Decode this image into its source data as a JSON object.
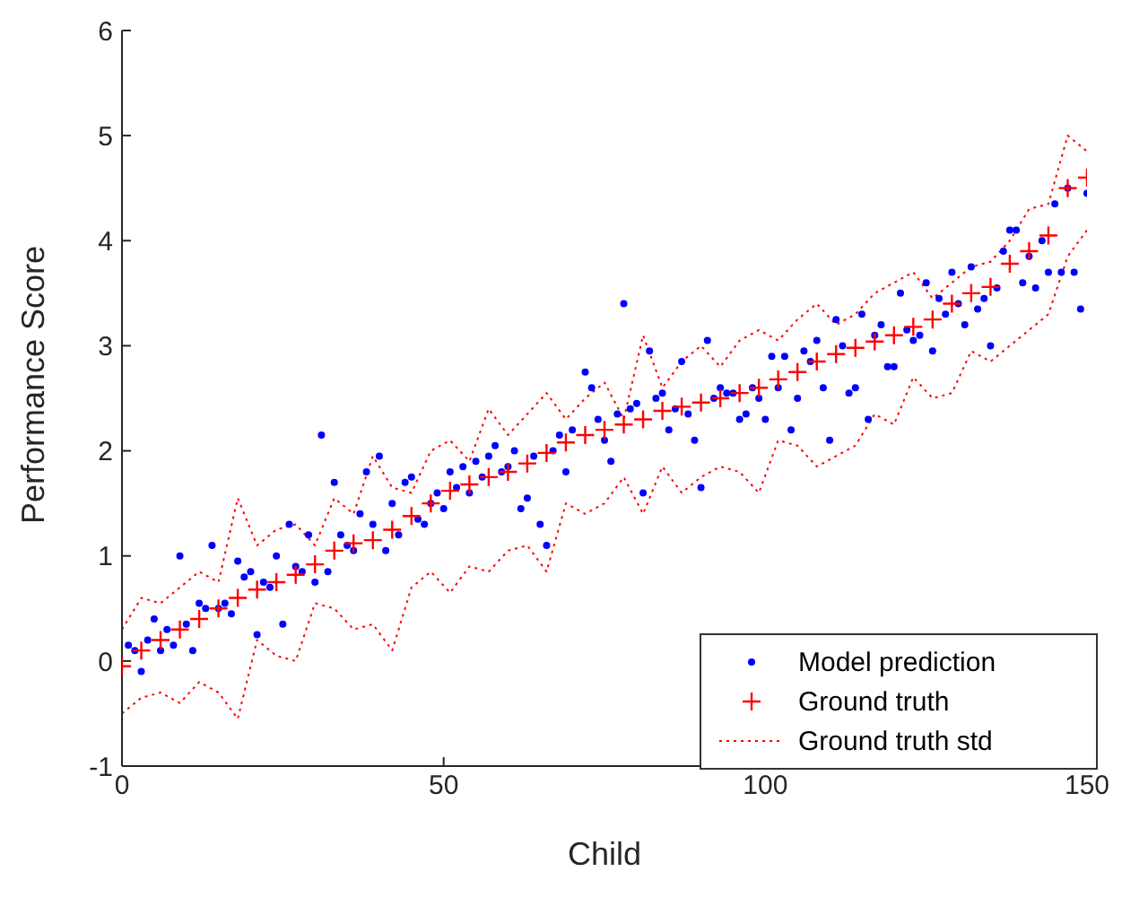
{
  "chart_data": {
    "type": "scatter",
    "xlabel": "Child",
    "ylabel": "Performance Score",
    "xlim": [
      0,
      150
    ],
    "xticks": [
      0,
      50,
      100,
      150
    ],
    "ylim": [
      -1,
      6
    ],
    "yticks": [
      -1,
      0,
      1,
      2,
      3,
      4,
      5,
      6
    ],
    "grid": false,
    "legend": "bottom right",
    "series": [
      {
        "name": "Model prediction",
        "type": "scatter",
        "marker": "circle",
        "color": "#0000ff",
        "x": [
          1,
          2,
          3,
          4,
          5,
          6,
          7,
          8,
          9,
          10,
          11,
          12,
          13,
          14,
          15,
          16,
          17,
          18,
          19,
          20,
          21,
          22,
          23,
          24,
          25,
          26,
          27,
          28,
          29,
          30,
          31,
          32,
          33,
          34,
          35,
          36,
          37,
          38,
          39,
          40,
          41,
          42,
          43,
          44,
          45,
          46,
          47,
          48,
          49,
          50,
          51,
          52,
          53,
          54,
          55,
          56,
          57,
          58,
          59,
          60,
          61,
          62,
          63,
          64,
          65,
          66,
          67,
          68,
          69,
          70,
          72,
          73,
          74,
          75,
          76,
          77,
          78,
          79,
          80,
          81,
          82,
          83,
          84,
          85,
          86,
          87,
          88,
          89,
          90,
          91,
          92,
          93,
          94,
          95,
          96,
          97,
          98,
          99,
          100,
          101,
          102,
          103,
          104,
          105,
          106,
          107,
          108,
          109,
          110,
          111,
          112,
          113,
          114,
          115,
          116,
          117,
          118,
          119,
          120,
          121,
          122,
          123,
          124,
          125,
          126,
          127,
          128,
          129,
          130,
          131,
          132,
          133,
          134,
          135,
          136,
          137,
          138,
          139,
          140,
          141,
          142,
          143,
          144,
          145,
          146,
          147,
          148,
          149,
          150
        ],
        "values": [
          0.15,
          0.1,
          -0.1,
          0.2,
          0.4,
          0.1,
          0.3,
          0.15,
          1.0,
          0.35,
          0.1,
          0.55,
          0.5,
          1.1,
          0.5,
          0.55,
          0.45,
          0.95,
          0.8,
          0.85,
          0.25,
          0.75,
          0.7,
          1.0,
          0.35,
          1.3,
          0.9,
          0.85,
          1.2,
          0.75,
          2.15,
          0.85,
          1.7,
          1.2,
          1.1,
          1.05,
          1.4,
          1.8,
          1.3,
          1.95,
          1.05,
          1.5,
          1.2,
          1.7,
          1.75,
          1.35,
          1.3,
          1.5,
          1.6,
          1.45,
          1.8,
          1.65,
          1.85,
          1.6,
          1.9,
          1.75,
          1.95,
          2.05,
          1.8,
          1.85,
          2.0,
          1.45,
          1.55,
          1.95,
          1.3,
          1.1,
          2.0,
          2.15,
          1.8,
          2.2,
          2.75,
          2.6,
          2.3,
          2.1,
          1.9,
          2.35,
          3.4,
          2.4,
          2.45,
          1.6,
          2.95,
          2.5,
          2.55,
          2.2,
          2.4,
          2.85,
          2.35,
          2.1,
          1.65,
          3.05,
          2.5,
          2.6,
          2.55,
          2.55,
          2.3,
          2.35,
          2.6,
          2.5,
          2.3,
          2.9,
          2.6,
          2.9,
          2.2,
          2.5,
          2.95,
          2.85,
          3.05,
          2.6,
          2.1,
          3.25,
          3.0,
          2.55,
          2.6,
          3.3,
          2.3,
          3.1,
          3.2,
          2.8,
          2.8,
          3.5,
          3.15,
          3.05,
          3.1,
          3.6,
          2.95,
          3.45,
          3.3,
          3.7,
          3.4,
          3.2,
          3.75,
          3.35,
          3.45,
          3.0,
          3.55,
          3.9,
          4.1,
          4.1,
          3.6,
          3.85,
          3.55,
          4.0,
          3.7,
          4.35,
          3.7,
          4.5,
          3.7,
          3.35,
          4.45
        ]
      },
      {
        "name": "Ground truth",
        "type": "scatter",
        "marker": "cross",
        "color": "#ff0000",
        "x": [
          0,
          3,
          6,
          9,
          12,
          15,
          18,
          21,
          24,
          27,
          30,
          33,
          36,
          39,
          42,
          45,
          48,
          51,
          54,
          57,
          60,
          63,
          66,
          69,
          72,
          75,
          78,
          81,
          84,
          87,
          90,
          93,
          96,
          99,
          102,
          105,
          108,
          111,
          114,
          117,
          120,
          123,
          126,
          129,
          132,
          135,
          138,
          141,
          144,
          147,
          150
        ],
        "values": [
          -0.05,
          0.1,
          0.2,
          0.3,
          0.4,
          0.5,
          0.6,
          0.68,
          0.75,
          0.82,
          0.92,
          1.05,
          1.12,
          1.15,
          1.25,
          1.38,
          1.5,
          1.62,
          1.68,
          1.75,
          1.8,
          1.88,
          1.98,
          2.08,
          2.15,
          2.2,
          2.25,
          2.3,
          2.38,
          2.42,
          2.46,
          2.5,
          2.55,
          2.6,
          2.68,
          2.75,
          2.85,
          2.92,
          2.98,
          3.04,
          3.1,
          3.18,
          3.25,
          3.4,
          3.5,
          3.56,
          3.78,
          3.9,
          4.05,
          4.5,
          4.6
        ]
      },
      {
        "name": "Ground truth std",
        "type": "line",
        "line_style": "dotted",
        "marker": "none",
        "color": "#ff0000",
        "x": [
          0,
          3,
          6,
          9,
          12,
          15,
          18,
          21,
          24,
          27,
          30,
          33,
          36,
          39,
          42,
          45,
          48,
          51,
          54,
          57,
          60,
          63,
          66,
          69,
          72,
          75,
          78,
          81,
          84,
          87,
          90,
          93,
          96,
          99,
          102,
          105,
          108,
          111,
          114,
          117,
          120,
          123,
          126,
          129,
          132,
          135,
          138,
          141,
          144,
          147,
          150
        ],
        "values": [
          0.3,
          0.6,
          0.55,
          0.7,
          0.85,
          0.75,
          1.55,
          1.1,
          1.25,
          1.3,
          1.1,
          1.55,
          1.4,
          1.95,
          1.65,
          1.6,
          2.0,
          2.1,
          1.9,
          2.4,
          2.15,
          2.35,
          2.55,
          2.3,
          2.5,
          2.65,
          2.3,
          3.1,
          2.6,
          2.85,
          3.0,
          2.8,
          3.05,
          3.15,
          3.05,
          3.25,
          3.4,
          3.2,
          3.3,
          3.5,
          3.6,
          3.7,
          3.45,
          3.6,
          3.75,
          3.8,
          4.0,
          4.3,
          4.35,
          5.0,
          4.85
        ]
      },
      {
        "type": "line",
        "line_style": "dotted",
        "marker": "none",
        "color": "#ff0000",
        "x": [
          0,
          3,
          6,
          9,
          12,
          15,
          18,
          21,
          24,
          27,
          30,
          33,
          36,
          39,
          42,
          45,
          48,
          51,
          54,
          57,
          60,
          63,
          66,
          69,
          72,
          75,
          78,
          81,
          84,
          87,
          90,
          93,
          96,
          99,
          102,
          105,
          108,
          111,
          114,
          117,
          120,
          123,
          126,
          129,
          132,
          135,
          138,
          141,
          144,
          147,
          150
        ],
        "values": [
          -0.5,
          -0.35,
          -0.3,
          -0.4,
          -0.2,
          -0.3,
          -0.55,
          0.2,
          0.05,
          0.0,
          0.55,
          0.5,
          0.3,
          0.35,
          0.1,
          0.7,
          0.85,
          0.65,
          0.9,
          0.85,
          1.05,
          1.1,
          0.85,
          1.5,
          1.4,
          1.5,
          1.75,
          1.4,
          1.85,
          1.6,
          1.75,
          1.85,
          1.8,
          1.6,
          2.1,
          2.05,
          1.85,
          1.95,
          2.05,
          2.35,
          2.25,
          2.7,
          2.5,
          2.55,
          2.95,
          2.85,
          3.0,
          3.15,
          3.3,
          3.85,
          4.1
        ]
      }
    ]
  }
}
